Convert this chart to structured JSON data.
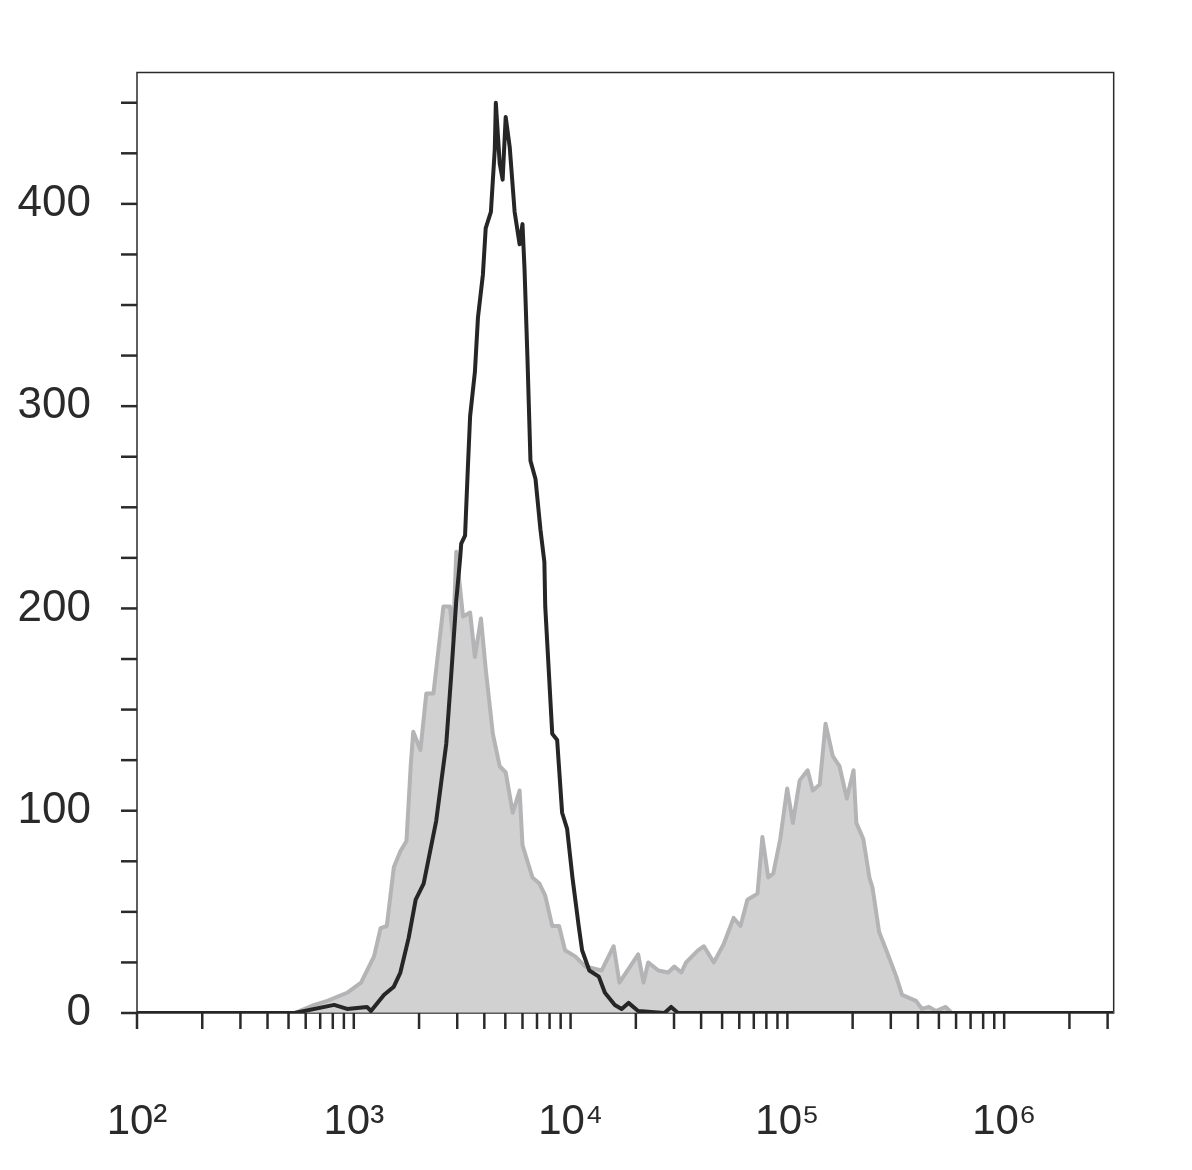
{
  "chart_data": {
    "type": "area",
    "log": "x",
    "marker": "none",
    "xlim": [
      100,
      3200000
    ],
    "xticks": [
      {
        "value": 100,
        "label": "10²"
      },
      {
        "value": 200,
        "label": null
      },
      {
        "value": 300,
        "label": null
      },
      {
        "value": 400,
        "label": null
      },
      {
        "value": 500,
        "label": null
      },
      {
        "value": 600,
        "label": null
      },
      {
        "value": 700,
        "label": null
      },
      {
        "value": 800,
        "label": null
      },
      {
        "value": 900,
        "label": null
      },
      {
        "value": 1000,
        "label": "10³"
      },
      {
        "value": 2000,
        "label": null
      },
      {
        "value": 3000,
        "label": null
      },
      {
        "value": 4000,
        "label": null
      },
      {
        "value": 5000,
        "label": null
      },
      {
        "value": 6000,
        "label": null
      },
      {
        "value": 7000,
        "label": null
      },
      {
        "value": 8000,
        "label": null
      },
      {
        "value": 9000,
        "label": null
      },
      {
        "value": 10000,
        "label": "10⁴"
      },
      {
        "value": 20000,
        "label": null
      },
      {
        "value": 30000,
        "label": null
      },
      {
        "value": 40000,
        "label": null
      },
      {
        "value": 50000,
        "label": null
      },
      {
        "value": 60000,
        "label": null
      },
      {
        "value": 70000,
        "label": null
      },
      {
        "value": 80000,
        "label": null
      },
      {
        "value": 90000,
        "label": null
      },
      {
        "value": 100000,
        "label": "10⁵"
      },
      {
        "value": 200000,
        "label": null
      },
      {
        "value": 300000,
        "label": null
      },
      {
        "value": 400000,
        "label": null
      },
      {
        "value": 500000,
        "label": null
      },
      {
        "value": 600000,
        "label": null
      },
      {
        "value": 700000,
        "label": null
      },
      {
        "value": 800000,
        "label": null
      },
      {
        "value": 900000,
        "label": null
      },
      {
        "value": 1000000,
        "label": "10⁶"
      },
      {
        "value": 2000000,
        "label": null
      },
      {
        "value": 3000000,
        "label": null
      }
    ],
    "ylim": [
      0,
      465
    ],
    "yticks": [
      0,
      {
        "value": 25,
        "label": null
      },
      {
        "value": 50,
        "label": null
      },
      {
        "value": 75,
        "label": null
      },
      100,
      {
        "value": 125,
        "label": null
      },
      {
        "value": 150,
        "label": null
      },
      {
        "value": 175,
        "label": null
      },
      200,
      {
        "value": 225,
        "label": null
      },
      {
        "value": 250,
        "label": null
      },
      {
        "value": 275,
        "label": null
      },
      300,
      {
        "value": 325,
        "label": null
      },
      {
        "value": 350,
        "label": null
      },
      {
        "value": 375,
        "label": null
      },
      400,
      {
        "value": 425,
        "label": null
      },
      {
        "value": 450,
        "label": null
      }
    ],
    "series": [
      {
        "type": "area",
        "color": "#b4b4b6",
        "x": [
          100,
          533,
          658,
          755,
          931,
          1080,
          1240,
          1330,
          1420,
          1530,
          1640,
          1750,
          1830,
          1880,
          2030,
          2160,
          2330,
          2400,
          2590,
          2780,
          2870,
          2970,
          3190,
          3440,
          3620,
          3860,
          4060,
          4380,
          4710,
          5020,
          5410,
          5820,
          6000,
          6670,
          7180,
          7640,
          8230,
          8850,
          9430,
          10500,
          11700,
          13900,
          15800,
          16800,
          20500,
          21700,
          22800,
          25400,
          28200,
          30100,
          32400,
          34100,
          38700,
          41200,
          45800,
          50800,
          56500,
          60800,
          65400,
          72800,
          76700,
          81600,
          86100,
          92700,
          99800,
          106000,
          114000,
          124000,
          131000,
          141000,
          150000,
          162000,
          174000,
          188000,
          202000,
          208000,
          224000,
          239000,
          247000,
          265000,
          286000,
          318000,
          338000,
          392000,
          418000,
          450000,
          484000,
          537000,
          572000,
          3200000
        ],
        "values": [
          0,
          0,
          4,
          6,
          10,
          15,
          28,
          42,
          43,
          72,
          80,
          85,
          122,
          139,
          130,
          158,
          158,
          170,
          201,
          201,
          185,
          228,
          196,
          198,
          176,
          195,
          170,
          138,
          122,
          119,
          99,
          110,
          83,
          67,
          64,
          58,
          43,
          43,
          31,
          28,
          23,
          21,
          33,
          15,
          29,
          15,
          25,
          21,
          20,
          23,
          20,
          25,
          31,
          33,
          25,
          34,
          47,
          43,
          56,
          59,
          87,
          67,
          69,
          86,
          111,
          94,
          115,
          120,
          110,
          113,
          143,
          127,
          122,
          106,
          120,
          94,
          86,
          67,
          62,
          40,
          31,
          18,
          9,
          6,
          2,
          3,
          1,
          3,
          0,
          0
        ]
      },
      {
        "type": "line",
        "color": "#262626",
        "x": [
          100,
          533,
          812,
          931,
          1150,
          1200,
          1380,
          1530,
          1640,
          1790,
          1930,
          2100,
          2260,
          2400,
          2530,
          2670,
          2810,
          2970,
          3090,
          3130,
          3260,
          3360,
          3440,
          3620,
          3740,
          3940,
          4060,
          4290,
          4470,
          4520,
          4710,
          4860,
          5020,
          5240,
          5520,
          5820,
          6000,
          6130,
          6320,
          6530,
          6890,
          7260,
          7570,
          7640,
          8230,
          8670,
          9140,
          9640,
          10200,
          10900,
          11300,
          12200,
          13500,
          14400,
          16000,
          17200,
          18500,
          20500,
          27100,
          29100,
          31300,
          3200000
        ],
        "values": [
          0,
          0,
          4,
          2,
          3,
          1,
          9,
          13,
          20,
          37,
          56,
          64,
          81,
          95,
          114,
          133,
          166,
          204,
          224,
          232,
          236,
          270,
          295,
          317,
          344,
          365,
          388,
          396,
          427,
          450,
          420,
          412,
          443,
          428,
          396,
          380,
          390,
          368,
          325,
          273,
          264,
          239,
          223,
          201,
          138,
          135,
          99,
          91,
          67,
          43,
          31,
          21,
          18,
          10,
          4,
          2,
          5,
          1,
          0,
          3,
          0,
          0
        ]
      }
    ]
  }
}
